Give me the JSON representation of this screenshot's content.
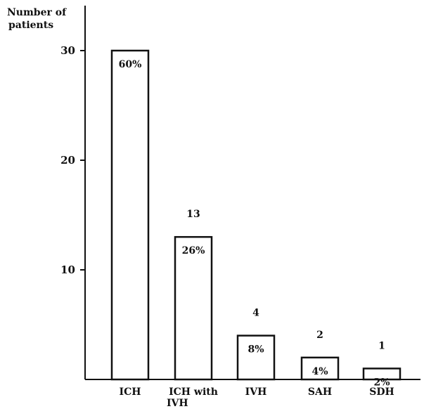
{
  "chart_data": {
    "type": "bar",
    "ylabel_lines": [
      "Number of",
      "patients"
    ],
    "xlabel": "",
    "ylim": [
      0,
      34
    ],
    "yticks": [
      {
        "value": 10,
        "label": "10"
      },
      {
        "value": 20,
        "label": "20"
      },
      {
        "value": 30,
        "label": "30"
      }
    ],
    "categories": [
      {
        "lines": [
          "ICH"
        ]
      },
      {
        "lines": [
          "ICH with",
          "IVH"
        ]
      },
      {
        "lines": [
          "IVH"
        ]
      },
      {
        "lines": [
          "SAH"
        ]
      },
      {
        "lines": [
          "SDH"
        ]
      }
    ],
    "values": [
      30,
      13,
      4,
      2,
      1
    ],
    "count_labels": [
      "",
      "13",
      "4",
      "2",
      "1"
    ],
    "percent_labels": [
      "60%",
      "26%",
      "8%",
      "4%",
      "2%"
    ],
    "grid": false,
    "bar_fill": "#ffffff",
    "bar_stroke": "#111111"
  }
}
